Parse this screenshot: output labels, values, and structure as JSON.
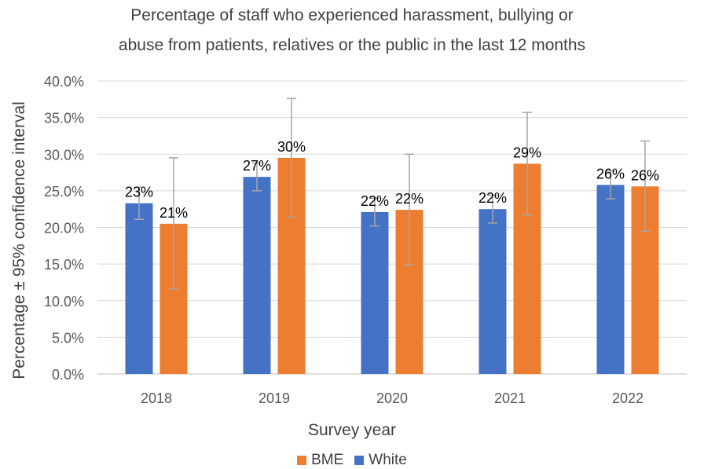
{
  "chart_data": {
    "type": "bar",
    "title_line1": "Percentage of staff who experienced harassment, bullying or",
    "title_line2": "abuse from patients, relatives or the public in the last 12 months",
    "xlabel": "Survey year",
    "ylabel": "Percentage ± 95% confidence interval",
    "categories": [
      "2018",
      "2019",
      "2020",
      "2021",
      "2022"
    ],
    "ylim": [
      0,
      40
    ],
    "yticks": [
      "0.0%",
      "5.0%",
      "10.0%",
      "15.0%",
      "20.0%",
      "25.0%",
      "30.0%",
      "35.0%",
      "40.0%"
    ],
    "grid": true,
    "legend_position": "bottom",
    "series": [
      {
        "name": "White",
        "color": "#4472C4",
        "values": [
          23.3,
          26.9,
          22.1,
          22.5,
          25.8
        ],
        "ci_low": [
          21.1,
          25.0,
          20.2,
          20.6,
          23.9
        ],
        "ci_high": [
          25.5,
          28.8,
          24.0,
          24.4,
          27.7
        ],
        "labels": [
          "23%",
          "27%",
          "22%",
          "22%",
          "26%"
        ]
      },
      {
        "name": "BME",
        "color": "#ED7D31",
        "values": [
          20.5,
          29.5,
          22.4,
          28.7,
          25.6
        ],
        "ci_low": [
          11.6,
          21.4,
          14.9,
          21.7,
          19.5
        ],
        "ci_high": [
          29.5,
          37.6,
          30.0,
          35.7,
          31.8
        ],
        "labels": [
          "21%",
          "30%",
          "22%",
          "29%",
          "26%"
        ]
      }
    ],
    "legend_order": [
      "BME",
      "White"
    ]
  }
}
